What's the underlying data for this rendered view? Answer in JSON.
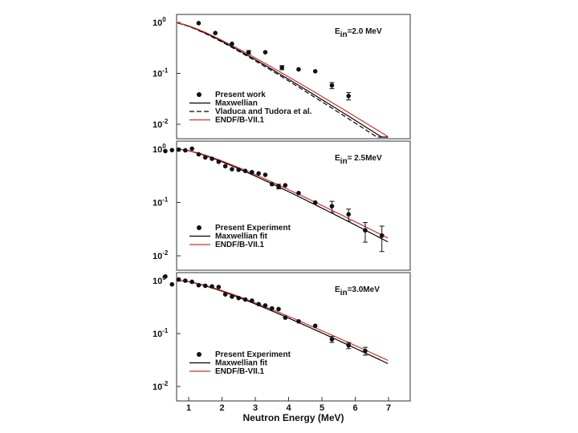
{
  "chart_data": [
    {
      "type": "line",
      "annotation": {
        "sym": "E",
        "sub": "in",
        "rest": "=2.0 MeV"
      },
      "y_scale": "log",
      "ylim": [
        0.01,
        1.0
      ],
      "xlim": [
        0,
        7
      ],
      "y_tick_labels": [
        {
          "base": "10",
          "exp": "0",
          "value": 1.0
        },
        {
          "base": "10",
          "exp": "-1",
          "value": 0.1
        },
        {
          "base": "10",
          "exp": "-2",
          "value": 0.01
        }
      ],
      "series": [
        {
          "name": "Present work",
          "kind": "points",
          "x": [
            1.3,
            1.8,
            2.3,
            2.8,
            3.3,
            3.8,
            4.3,
            4.8,
            5.3,
            5.8
          ],
          "y": [
            0.97,
            0.62,
            0.38,
            0.26,
            0.26,
            0.13,
            0.12,
            0.11,
            0.058,
            0.036
          ],
          "yerr": [
            0,
            0,
            0,
            0.02,
            0,
            0.012,
            0,
            0,
            0.008,
            0.006
          ]
        },
        {
          "name": "Maxwellian",
          "kind": "curve",
          "style": "solid",
          "color": "#000000",
          "T": 0.97
        },
        {
          "name": "Vladuca and Tudora et al.",
          "kind": "curve",
          "style": "dashed",
          "color": "#000000",
          "T": 0.95
        },
        {
          "name": "ENDF/B-VII.1",
          "kind": "curve",
          "style": "solid",
          "color": "#d03030",
          "T": 1.0
        }
      ],
      "legend_location": "bottom-left"
    },
    {
      "type": "line",
      "annotation": {
        "sym": "E",
        "sub": "in",
        "rest": "= 2.5MeV"
      },
      "y_scale": "log",
      "ylim": [
        0.01,
        1.0
      ],
      "xlim": [
        0,
        7
      ],
      "y_tick_labels": [
        {
          "base": "10",
          "exp": "0",
          "value": 1.0
        },
        {
          "base": "10",
          "exp": "-1",
          "value": 0.1
        },
        {
          "base": "10",
          "exp": "-2",
          "value": 0.01
        }
      ],
      "series": [
        {
          "name": "Present Experiment",
          "kind": "points",
          "x": [
            0.3,
            0.5,
            0.7,
            0.9,
            1.1,
            1.3,
            1.5,
            1.7,
            1.9,
            2.1,
            2.3,
            2.5,
            2.7,
            2.9,
            3.1,
            3.3,
            3.5,
            3.7,
            3.9,
            4.3,
            4.8,
            5.3,
            5.8,
            6.3,
            6.8
          ],
          "y": [
            0.92,
            0.96,
            0.98,
            0.95,
            1.02,
            0.8,
            0.7,
            0.66,
            0.58,
            0.48,
            0.42,
            0.41,
            0.39,
            0.37,
            0.35,
            0.33,
            0.22,
            0.2,
            0.21,
            0.15,
            0.1,
            0.085,
            0.06,
            0.03,
            0.024
          ],
          "yerr": [
            0,
            0,
            0,
            0,
            0,
            0,
            0,
            0,
            0,
            0,
            0,
            0,
            0,
            0,
            0,
            0,
            0,
            0.02,
            0,
            0,
            0,
            0.02,
            0.015,
            0.012,
            0.012
          ]
        },
        {
          "name": "Maxwellian fit",
          "kind": "curve",
          "style": "solid",
          "color": "#000000",
          "T": 1.22
        },
        {
          "name": "ENDF/B-VII.1",
          "kind": "curve",
          "style": "solid",
          "color": "#d03030",
          "T": 1.26
        }
      ],
      "legend_location": "bottom-left"
    },
    {
      "type": "line",
      "annotation": {
        "sym": "E",
        "sub": "in",
        "rest": "=3.0MeV"
      },
      "y_scale": "log",
      "ylim": [
        0.01,
        1.0
      ],
      "xlim": [
        0,
        7
      ],
      "y_tick_labels": [
        {
          "base": "10",
          "exp": "0",
          "value": 1.0
        },
        {
          "base": "10",
          "exp": "-1",
          "value": 0.1
        },
        {
          "base": "10",
          "exp": "-2",
          "value": 0.01
        }
      ],
      "series": [
        {
          "name": "Present Experiment",
          "kind": "points",
          "x": [
            0.3,
            0.5,
            0.7,
            0.9,
            1.1,
            1.3,
            1.5,
            1.7,
            1.9,
            2.1,
            2.3,
            2.5,
            2.7,
            2.9,
            3.1,
            3.3,
            3.5,
            3.7,
            3.9,
            4.3,
            4.8,
            5.3,
            5.8,
            6.3
          ],
          "y": [
            1.2,
            0.85,
            1.05,
            1.0,
            0.95,
            0.82,
            0.8,
            0.78,
            0.76,
            0.55,
            0.5,
            0.47,
            0.44,
            0.42,
            0.36,
            0.34,
            0.3,
            0.29,
            0.2,
            0.17,
            0.14,
            0.078,
            0.06,
            0.047
          ],
          "yerr": [
            0,
            0,
            0,
            0,
            0,
            0,
            0,
            0,
            0,
            0,
            0,
            0,
            0,
            0,
            0,
            0,
            0,
            0,
            0,
            0,
            0,
            0.01,
            0.008,
            0.008
          ]
        },
        {
          "name": "Maxwellian fit",
          "kind": "curve",
          "style": "solid",
          "color": "#000000",
          "T": 1.32
        },
        {
          "name": "ENDF/B-VII.1",
          "kind": "curve",
          "style": "solid",
          "color": "#d03030",
          "T": 1.36
        }
      ],
      "legend_location": "bottom-left"
    }
  ],
  "x_axis": {
    "label": "Neutron Energy (MeV)",
    "ticks": [
      "1",
      "2",
      "3",
      "4",
      "5",
      "6",
      "7"
    ],
    "tick_values": [
      1,
      2,
      3,
      4,
      5,
      6,
      7
    ]
  }
}
